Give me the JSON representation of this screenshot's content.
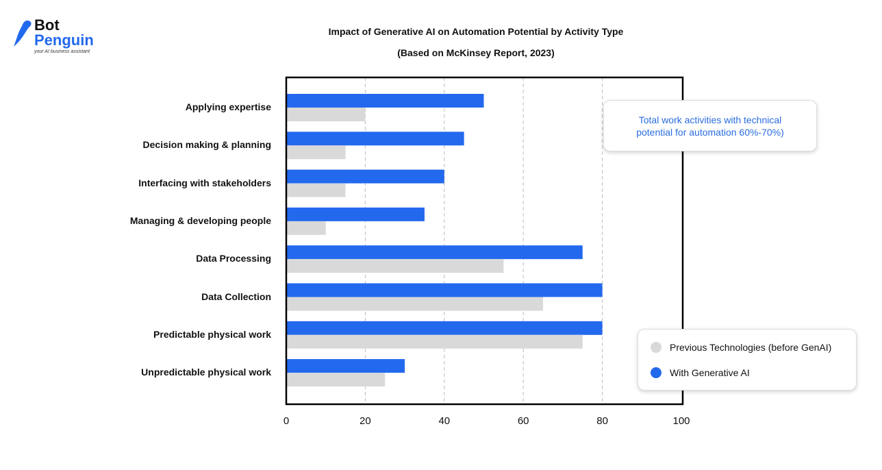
{
  "brand": {
    "name_line1": "Bot",
    "name_line2": "Penguin",
    "tagline": "your AI business assistant"
  },
  "chart_data": {
    "type": "bar",
    "orientation": "horizontal",
    "title": "Impact of Generative AI on Automation Potential by Activity Type",
    "subtitle": "(Based on McKinsey Report, 2023)",
    "categories": [
      "Applying expertise",
      "Decision making & planning",
      "Interfacing with stakeholders",
      "Managing & developing people",
      "Data Processing",
      "Data Collection",
      "Predictable physical work",
      "Unpredictable physical work"
    ],
    "series": [
      {
        "name": "With Generative AI",
        "color": "#2369ee",
        "values": [
          50,
          45,
          40,
          35,
          75,
          80,
          80,
          30
        ]
      },
      {
        "name": "Previous Technologies (before GenAI)",
        "color": "#d9d9d9",
        "values": [
          20,
          15,
          15,
          10,
          55,
          65,
          75,
          25
        ]
      }
    ],
    "xlim": [
      0,
      100
    ],
    "xticks": [
      "0",
      "20",
      "40",
      "60",
      "80",
      "100"
    ],
    "grid": "vertical dashed",
    "legend": "bottom-right",
    "annotation": "Total work activities with technical potential for automation 60%-70%)"
  }
}
